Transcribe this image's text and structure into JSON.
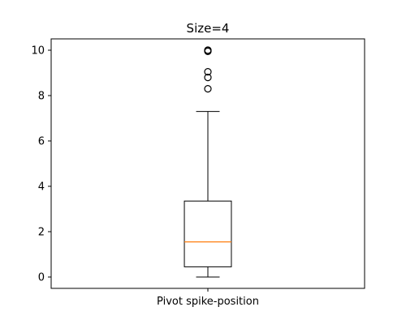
{
  "chart_data": {
    "type": "box",
    "title": "Size=4",
    "xlabel": "",
    "ylabel": "",
    "categories": [
      "Pivot spike-position"
    ],
    "ylim": [
      -0.5,
      10.5
    ],
    "yticks": [
      0,
      2,
      4,
      6,
      8,
      10
    ],
    "grid": false,
    "boxes": [
      {
        "category": "Pivot spike-position",
        "whisker_low": 0.0,
        "q1": 0.45,
        "median": 1.55,
        "q3": 3.35,
        "whisker_high": 7.3,
        "outliers": [
          8.3,
          8.8,
          9.05,
          9.95,
          10.0,
          10.0
        ]
      }
    ],
    "colors": {
      "box": "#000000",
      "median": "#ff7f0e",
      "outlier": "#000000"
    }
  }
}
